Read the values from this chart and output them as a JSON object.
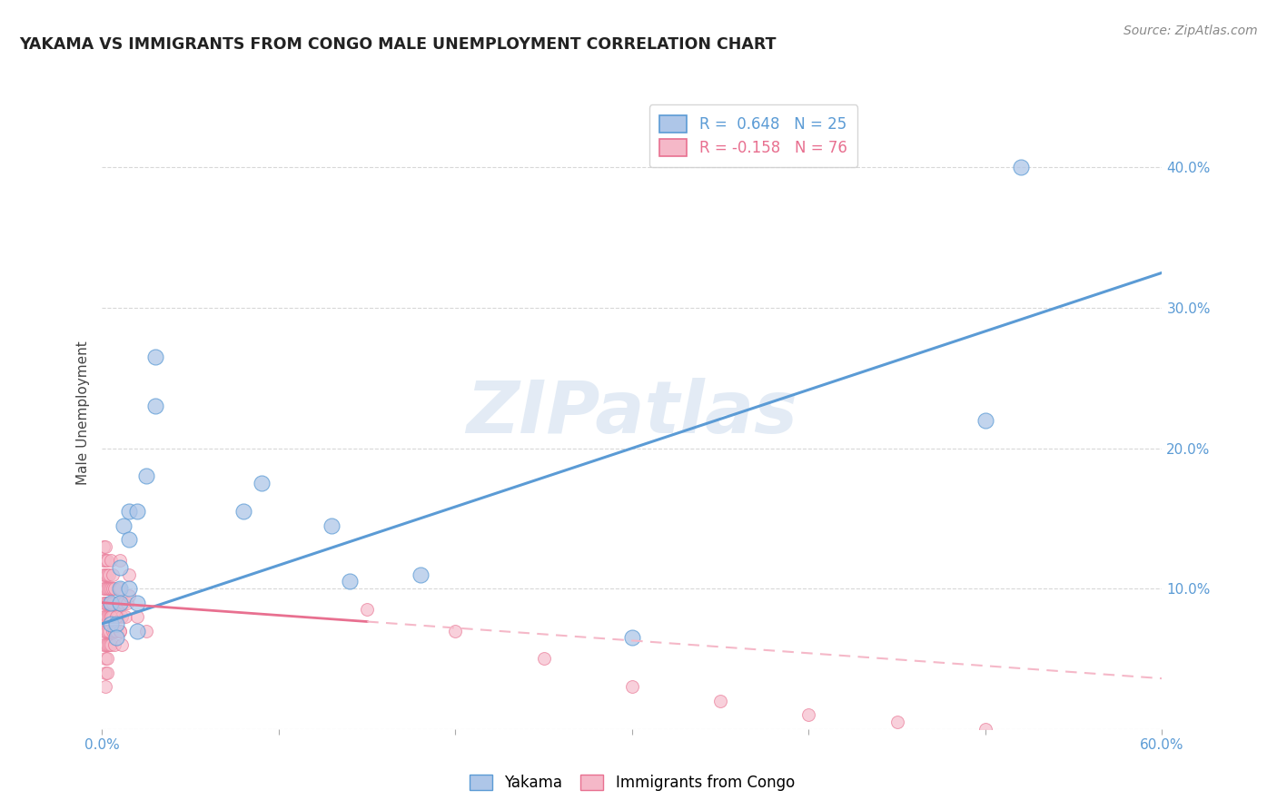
{
  "title": "YAKAMA VS IMMIGRANTS FROM CONGO MALE UNEMPLOYMENT CORRELATION CHART",
  "source": "Source: ZipAtlas.com",
  "ylabel": "Male Unemployment",
  "xlim": [
    0.0,
    0.6
  ],
  "ylim": [
    0.0,
    0.45
  ],
  "background_color": "#ffffff",
  "grid_color": "#d8d8d8",
  "yakama_R": 0.648,
  "yakama_N": 25,
  "congo_R": -0.158,
  "congo_N": 76,
  "yakama_color": "#aec6e8",
  "congo_color": "#f5b8c8",
  "yakama_line_color": "#5b9bd5",
  "congo_line_solid_color": "#e87090",
  "congo_line_dash_color": "#f5b8c8",
  "yakama_scatter_x": [
    0.005,
    0.005,
    0.008,
    0.008,
    0.01,
    0.01,
    0.01,
    0.012,
    0.015,
    0.015,
    0.015,
    0.02,
    0.02,
    0.02,
    0.025,
    0.03,
    0.03,
    0.08,
    0.09,
    0.13,
    0.14,
    0.18,
    0.3,
    0.5,
    0.52
  ],
  "yakama_scatter_y": [
    0.09,
    0.075,
    0.075,
    0.065,
    0.115,
    0.1,
    0.09,
    0.145,
    0.135,
    0.1,
    0.155,
    0.155,
    0.09,
    0.07,
    0.18,
    0.265,
    0.23,
    0.155,
    0.175,
    0.145,
    0.105,
    0.11,
    0.065,
    0.22,
    0.4
  ],
  "congo_scatter_x": [
    0.001,
    0.001,
    0.001,
    0.001,
    0.001,
    0.001,
    0.001,
    0.001,
    0.002,
    0.002,
    0.002,
    0.002,
    0.002,
    0.002,
    0.002,
    0.002,
    0.002,
    0.002,
    0.002,
    0.003,
    0.003,
    0.003,
    0.003,
    0.003,
    0.003,
    0.003,
    0.003,
    0.003,
    0.004,
    0.004,
    0.004,
    0.004,
    0.004,
    0.004,
    0.005,
    0.005,
    0.005,
    0.005,
    0.005,
    0.006,
    0.006,
    0.006,
    0.006,
    0.007,
    0.007,
    0.007,
    0.007,
    0.008,
    0.008,
    0.008,
    0.009,
    0.01,
    0.01,
    0.01,
    0.011,
    0.012,
    0.013,
    0.014,
    0.015,
    0.005,
    0.006,
    0.008,
    0.01,
    0.011,
    0.01,
    0.015,
    0.02,
    0.025,
    0.15,
    0.2,
    0.25,
    0.3,
    0.35,
    0.4,
    0.45,
    0.5
  ],
  "congo_scatter_y": [
    0.13,
    0.12,
    0.11,
    0.1,
    0.09,
    0.08,
    0.07,
    0.06,
    0.13,
    0.12,
    0.11,
    0.1,
    0.09,
    0.08,
    0.07,
    0.06,
    0.05,
    0.04,
    0.03,
    0.12,
    0.11,
    0.1,
    0.09,
    0.08,
    0.07,
    0.06,
    0.05,
    0.04,
    0.11,
    0.1,
    0.09,
    0.08,
    0.07,
    0.06,
    0.12,
    0.1,
    0.09,
    0.08,
    0.06,
    0.11,
    0.1,
    0.08,
    0.07,
    0.1,
    0.09,
    0.07,
    0.06,
    0.09,
    0.08,
    0.07,
    0.08,
    0.12,
    0.09,
    0.07,
    0.08,
    0.09,
    0.08,
    0.09,
    0.095,
    0.08,
    0.09,
    0.08,
    0.07,
    0.06,
    0.1,
    0.11,
    0.08,
    0.07,
    0.085,
    0.07,
    0.05,
    0.03,
    0.02,
    0.01,
    0.005,
    0.0
  ],
  "yakama_trendline_x": [
    0.0,
    0.6
  ],
  "yakama_trendline_y": [
    0.075,
    0.325
  ],
  "congo_trendline_x0": 0.0,
  "congo_trendline_y0": 0.09,
  "congo_trendline_x_solid_end": 0.15,
  "congo_trendline_x_dash_end": 0.6,
  "congo_slope": -0.09
}
